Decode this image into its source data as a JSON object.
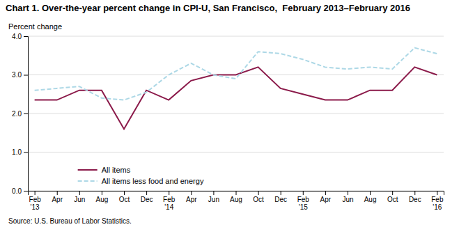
{
  "chart_data": {
    "type": "line",
    "title": "Chart 1. Over-the-year percent change in CPI-U, San Francisco,  February 2013–February 2016",
    "ylabel": "Percent change",
    "source": "Source: U.S. Bureau of Labor Statistics.",
    "categories": [
      "Feb\n'13",
      "Apr",
      "Jun",
      "Aug",
      "Oct",
      "Dec",
      "Feb\n'14",
      "Apr",
      "Jun",
      "Aug",
      "Oct",
      "Dec",
      "Feb\n'15",
      "Apr",
      "Jun",
      "Aug",
      "Oct",
      "Dec",
      "Feb\n'16"
    ],
    "series": [
      {
        "name": "All items",
        "color": "#8B1A4A",
        "line_style": "solid",
        "values": [
          2.35,
          2.35,
          2.6,
          2.6,
          1.6,
          2.6,
          2.35,
          2.85,
          3.0,
          3.0,
          3.2,
          2.65,
          2.5,
          2.35,
          2.35,
          2.6,
          2.6,
          3.2,
          3.0
        ]
      },
      {
        "name": "All items less food and energy",
        "color": "#ADD8E6",
        "line_style": "dashed",
        "values": [
          2.6,
          2.65,
          2.7,
          2.4,
          2.35,
          2.55,
          3.0,
          3.3,
          3.0,
          2.9,
          3.6,
          3.55,
          3.4,
          3.2,
          3.15,
          3.2,
          3.15,
          3.7,
          3.55
        ]
      }
    ],
    "ylim": [
      0.0,
      4.0
    ],
    "yticks": [
      {
        "value": 0.0,
        "label": "0.0"
      },
      {
        "value": 1.0,
        "label": "1.0"
      },
      {
        "value": 2.0,
        "label": "2.0"
      },
      {
        "value": 3.0,
        "label": "3.0"
      },
      {
        "value": 4.0,
        "label": "4.0"
      }
    ],
    "grid": true,
    "legend": "lower left"
  }
}
